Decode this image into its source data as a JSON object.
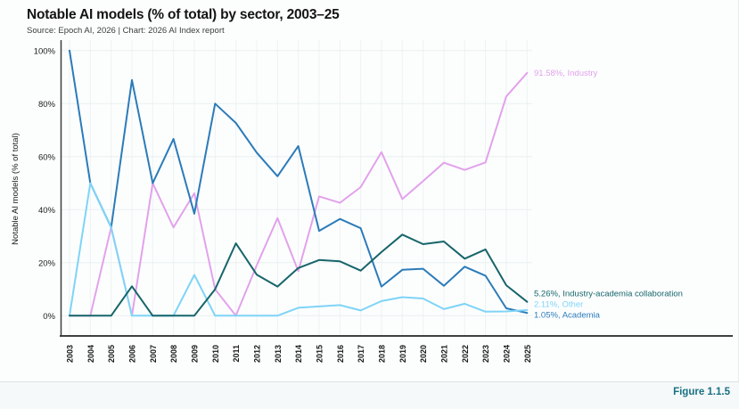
{
  "header": {
    "title": "Notable AI models (% of total) by sector, 2003–25",
    "subtitle": "Source: Epoch AI, 2026 | Chart: 2026 AI Index report"
  },
  "footer": {
    "figure_label": "Figure 1.1.5",
    "accent_color": "#177082"
  },
  "chart_data": {
    "type": "line",
    "title": "Notable AI models (% of total) by sector, 2003–25",
    "subtitle": "Source: Epoch AI, 2026 | Chart: 2026 AI Index report",
    "xlabel": "",
    "ylabel": "Notable AI models (% of total)",
    "ylim": [
      0,
      100
    ],
    "grid": true,
    "legend_position": "end-of-line labels, right side",
    "x": [
      "2003",
      "2004",
      "2005",
      "2006",
      "2007",
      "2008",
      "2009",
      "2010",
      "2011",
      "2012",
      "2013",
      "2014",
      "2015",
      "2016",
      "2017",
      "2018",
      "2019",
      "2020",
      "2021",
      "2022",
      "2023",
      "2024",
      "2025"
    ],
    "yticks": [
      "0%",
      "20%",
      "40%",
      "60%",
      "80%",
      "100%"
    ],
    "series": [
      {
        "id": "industry",
        "name": "Industry",
        "color": "#e2a2eb",
        "end_label": "91.58%, Industry",
        "end_value": 91.58,
        "values": [
          0,
          0,
          33.3,
          0,
          50,
          33.3,
          46.2,
          10,
          0,
          19,
          36.8,
          16.8,
          45,
          42.6,
          48.5,
          61.7,
          44,
          50.8,
          57.7,
          55,
          57.8,
          82.7,
          91.58
        ]
      },
      {
        "id": "collaboration",
        "name": "Industry-academia collaboration",
        "color": "#17656a",
        "end_label": "5.26%, Industry-academia collaboration",
        "end_value": 5.26,
        "values": [
          0,
          0,
          0,
          11.1,
          0,
          0,
          0,
          10,
          27.3,
          15.5,
          11,
          18,
          21,
          20.5,
          17,
          24,
          30.6,
          27,
          28,
          21.5,
          25,
          11.5,
          5.26
        ]
      },
      {
        "id": "other",
        "name": "Other",
        "color": "#7fd4f7",
        "end_label": "2.11%, Other",
        "end_value": 2.11,
        "values": [
          0,
          50,
          33.3,
          0,
          0,
          0,
          15.4,
          0,
          0,
          0,
          0,
          3,
          3.5,
          4,
          2,
          5.5,
          7,
          6.5,
          2.5,
          4.5,
          1.5,
          1.6,
          2.11
        ]
      },
      {
        "id": "academia",
        "name": "Academia",
        "color": "#2b7bb9",
        "end_label": "1.05%, Academia",
        "end_value": 1.05,
        "values": [
          100,
          50,
          33.3,
          88.9,
          50,
          66.7,
          38.5,
          80,
          72.7,
          61.5,
          52.6,
          64,
          32,
          36.5,
          33,
          11,
          17.3,
          17.7,
          11.3,
          18.5,
          15.1,
          2.8,
          1.05
        ]
      }
    ]
  }
}
